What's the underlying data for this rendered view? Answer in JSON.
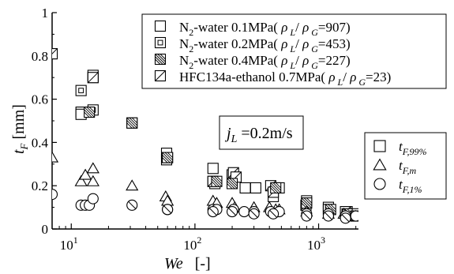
{
  "chart_data": {
    "type": "scatter",
    "title": "",
    "xlabel": {
      "symbol": "We",
      "unit": "[-]"
    },
    "ylabel": {
      "symbol": "t",
      "sub": "F",
      "unit": " [mm]"
    },
    "x_scale": "log",
    "xlim": [
      7,
      2100
    ],
    "ylim": [
      0,
      1
    ],
    "x_ticks": [
      {
        "value": 10,
        "base": "10",
        "exp": "1"
      },
      {
        "value": 100,
        "base": "10",
        "exp": "2"
      },
      {
        "value": 1000,
        "base": "10",
        "exp": "3"
      }
    ],
    "y_ticks": [
      {
        "value": 0,
        "label": "0"
      },
      {
        "value": 0.2,
        "label": "0.2"
      },
      {
        "value": 0.4,
        "label": "0.4"
      },
      {
        "value": 0.6,
        "label": "0.6"
      },
      {
        "value": 0.8,
        "label": "0.8"
      },
      {
        "value": 1,
        "label": "1"
      }
    ],
    "grid": false,
    "legend_fluids": [
      {
        "fill": "none",
        "pre": "N",
        "sub1": "2",
        "mid": "-water 0.1MPa(",
        "rho_l": "ρ",
        "sub_l": "L",
        "slash": "/",
        "rho_g": "ρ",
        "sub_g": "G",
        "post": "=907)"
      },
      {
        "fill": "inner-square",
        "pre": "N",
        "sub1": "2",
        "mid": "-water 0.2MPa(",
        "rho_l": "ρ",
        "sub_l": "L",
        "slash": "/",
        "rho_g": "ρ",
        "sub_g": "G",
        "post": "=453)"
      },
      {
        "fill": "hatch-dense",
        "pre": "N",
        "sub1": "2",
        "mid": "-water 0.4MPa(",
        "rho_l": "ρ",
        "sub_l": "L",
        "slash": "/",
        "rho_g": "ρ",
        "sub_g": "G",
        "post": "=227)"
      },
      {
        "fill": "diagonal",
        "pre": "",
        "sub1": "",
        "mid": "HFC134a-ethanol 0.7MPa(",
        "rho_l": "ρ",
        "sub_l": "L",
        "slash": "/",
        "rho_g": "ρ",
        "sub_g": "G",
        "post": "=23)"
      }
    ],
    "legend_symbols": [
      {
        "shape": "square",
        "sym": "t",
        "sub": "F,99%"
      },
      {
        "shape": "triangle",
        "sym": "t",
        "sub": "F,m"
      },
      {
        "shape": "circle",
        "sym": "t",
        "sub": "F,1%"
      }
    ],
    "annotation": {
      "sym": "j",
      "sub": "L",
      "text": " =0.2m/s"
    },
    "series": [
      {
        "metric": "t_F,99%",
        "shape": "square",
        "fill": "inner-square",
        "x": [
          7,
          12,
          15,
          15
        ],
        "y": [
          0.81,
          0.64,
          0.7,
          0.55
        ]
      },
      {
        "metric": "t_F,99%",
        "shape": "square",
        "fill": "none",
        "x": [
          12,
          12,
          15,
          59,
          59,
          140,
          140,
          145,
          200,
          255,
          310,
          430,
          480,
          800,
          1200,
          1700,
          2000
        ],
        "y": [
          0.54,
          0.53,
          0.71,
          0.32,
          0.35,
          0.28,
          0.22,
          0.21,
          0.25,
          0.19,
          0.19,
          0.15,
          0.19,
          0.13,
          0.1,
          0.08,
          0.07
        ]
      },
      {
        "metric": "t_F,99%",
        "shape": "square",
        "fill": "diagonal",
        "x": [
          7,
          15,
          31,
          60,
          140,
          205,
          215,
          410,
          430,
          790,
          1200,
          1650
        ],
        "y": [
          0.81,
          0.7,
          0.49,
          0.33,
          0.22,
          0.26,
          0.24,
          0.2,
          0.17,
          0.11,
          0.09,
          0.08
        ]
      },
      {
        "metric": "t_F,99%",
        "shape": "square",
        "fill": "hatch-dense",
        "x": [
          14,
          31,
          60,
          150,
          200,
          450,
          800,
          1250,
          1700,
          2000
        ],
        "y": [
          0.54,
          0.49,
          0.33,
          0.22,
          0.21,
          0.19,
          0.12,
          0.09,
          0.07,
          0.06
        ]
      },
      {
        "metric": "t_F,m",
        "shape": "triangle",
        "fill": "none",
        "x": [
          7,
          12,
          13,
          15,
          15,
          31,
          58,
          60,
          140,
          150,
          200,
          210,
          300,
          400,
          450,
          480,
          800,
          1200,
          1600,
          2000
        ],
        "y": [
          0.33,
          0.22,
          0.25,
          0.28,
          0.22,
          0.2,
          0.15,
          0.13,
          0.13,
          0.12,
          0.12,
          0.1,
          0.1,
          0.1,
          0.09,
          0.09,
          0.08,
          0.07,
          0.07,
          0.06
        ]
      },
      {
        "metric": "t_F,1%",
        "shape": "circle",
        "fill": "none",
        "x": [
          7,
          12,
          13,
          14,
          15,
          60,
          140,
          150,
          205,
          250,
          300,
          410,
          480,
          800,
          1200,
          1650,
          2000
        ],
        "y": [
          0.16,
          0.11,
          0.11,
          0.11,
          0.14,
          0.09,
          0.09,
          0.09,
          0.09,
          0.08,
          0.08,
          0.08,
          0.08,
          0.07,
          0.07,
          0.06,
          0.06
        ]
      },
      {
        "metric": "t_F,1%",
        "shape": "circle",
        "fill": "diagonal",
        "x": [
          31,
          60,
          140,
          200,
          300,
          430,
          800,
          1200,
          1650
        ],
        "y": [
          0.11,
          0.09,
          0.08,
          0.08,
          0.07,
          0.07,
          0.06,
          0.06,
          0.05
        ]
      }
    ]
  }
}
